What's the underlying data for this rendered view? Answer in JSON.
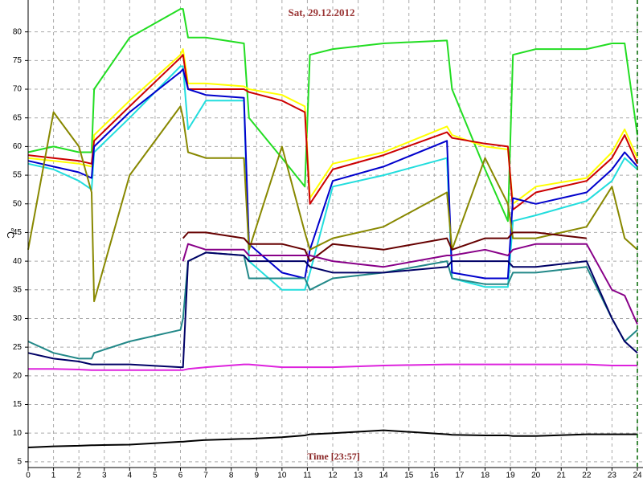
{
  "chart_data": {
    "type": "line",
    "title": "Sat, 29.12.2012",
    "x_label": "Time [23:57]",
    "y_label": "°C",
    "xlim": [
      0,
      24
    ],
    "ylim": [
      4,
      85
    ],
    "grid": true,
    "xticks": [
      0,
      1,
      2,
      3,
      4,
      5,
      6,
      7,
      8,
      9,
      10,
      11,
      12,
      13,
      14,
      15,
      16,
      17,
      18,
      19,
      20,
      21,
      22,
      23,
      24
    ],
    "yticks": [
      5,
      10,
      15,
      20,
      25,
      30,
      35,
      40,
      45,
      50,
      55,
      60,
      65,
      70,
      75,
      80
    ],
    "x": [
      0,
      1,
      2,
      2.5,
      2.6,
      4,
      6,
      6.1,
      6.3,
      7,
      8.5,
      8.7,
      10,
      10.9,
      11.1,
      12,
      14,
      16.5,
      16.7,
      18,
      18.9,
      19.1,
      20,
      22,
      23,
      23.5,
      24
    ],
    "series": [
      {
        "color": "#22dd22",
        "values": [
          59,
          60,
          59,
          59,
          70,
          79,
          84,
          84,
          79,
          79,
          78,
          65,
          58,
          53,
          76,
          77,
          78,
          78.5,
          70,
          56,
          47,
          76,
          77,
          77,
          78,
          78,
          62
        ]
      },
      {
        "color": "#ffff00",
        "values": [
          58,
          57.5,
          57,
          56.5,
          62,
          68,
          76,
          77,
          71,
          71,
          70.5,
          70,
          69,
          67,
          51,
          57,
          59,
          63.5,
          62,
          60,
          59.5,
          50,
          53,
          54.5,
          59,
          63,
          58
        ]
      },
      {
        "color": "#cc0000",
        "values": [
          58.5,
          58,
          57.5,
          57,
          61,
          67,
          75.5,
          76,
          70,
          70,
          70,
          69.5,
          68,
          66,
          50,
          56,
          58.5,
          62.5,
          61.5,
          60.5,
          60,
          49,
          52,
          54,
          58,
          62,
          57
        ]
      },
      {
        "color": "#22dddd",
        "values": [
          57,
          56,
          54,
          52.5,
          59,
          65,
          74,
          74,
          63,
          68,
          68,
          40,
          35,
          35,
          38,
          53,
          55,
          58,
          37,
          35.5,
          35.5,
          47,
          48,
          50.5,
          54,
          58,
          56
        ]
      },
      {
        "color": "#0000cc",
        "values": [
          57.5,
          56.5,
          55.5,
          54.5,
          60,
          66,
          73,
          73.5,
          70,
          69,
          68.5,
          43,
          38,
          37,
          42,
          54,
          56.5,
          61,
          38,
          37,
          37,
          51,
          50,
          52,
          56,
          59,
          56.5
        ]
      },
      {
        "color": "#888800",
        "values": [
          42,
          66,
          60,
          52,
          33,
          55,
          67,
          65,
          59,
          58,
          58,
          42,
          60,
          45,
          42,
          44,
          46,
          52,
          42,
          58,
          50,
          44,
          44,
          46,
          53,
          44,
          42
        ]
      },
      {
        "color": "#228888",
        "values": [
          26,
          24,
          23,
          23,
          24,
          26,
          28,
          30,
          40,
          41.5,
          41,
          37,
          37,
          37,
          35,
          37,
          38,
          40,
          37,
          36,
          36,
          38,
          38,
          39,
          30,
          26,
          28
        ]
      },
      {
        "color": "#000066",
        "values": [
          24,
          23,
          22.5,
          22,
          22,
          22,
          21.5,
          21.5,
          40,
          41.5,
          41,
          40,
          40,
          40,
          39,
          38,
          38,
          39,
          40,
          40,
          40,
          39,
          39,
          40,
          30,
          26,
          24
        ]
      },
      {
        "color": "#660000",
        "values": [
          null,
          null,
          null,
          null,
          null,
          null,
          null,
          44,
          45,
          45,
          44,
          43,
          43,
          42,
          40,
          43,
          42,
          44,
          42,
          44,
          44,
          45,
          45,
          44,
          null,
          null,
          null
        ]
      },
      {
        "color": "#880088",
        "values": [
          null,
          null,
          null,
          null,
          null,
          null,
          null,
          40,
          43,
          42,
          42,
          41,
          41,
          41,
          41,
          40,
          39,
          41,
          41,
          42,
          41,
          42,
          43,
          43,
          35,
          34,
          29
        ]
      },
      {
        "color": "#dd22dd",
        "values": [
          21.2,
          21.2,
          21.1,
          21,
          21,
          21,
          21,
          21,
          21.2,
          21.5,
          22,
          22,
          21.5,
          21.5,
          21.5,
          21.5,
          21.8,
          22,
          22,
          22,
          22,
          22,
          22,
          22,
          21.8,
          21.8,
          21.8
        ]
      },
      {
        "color": "#000000",
        "values": [
          7.5,
          7.7,
          7.8,
          7.9,
          7.9,
          8,
          8.5,
          8.5,
          8.6,
          8.8,
          9,
          9,
          9.3,
          9.6,
          9.8,
          10,
          10.5,
          9.8,
          9.7,
          9.6,
          9.6,
          9.5,
          9.5,
          9.8,
          9.8,
          9.8,
          9.8
        ]
      }
    ]
  }
}
